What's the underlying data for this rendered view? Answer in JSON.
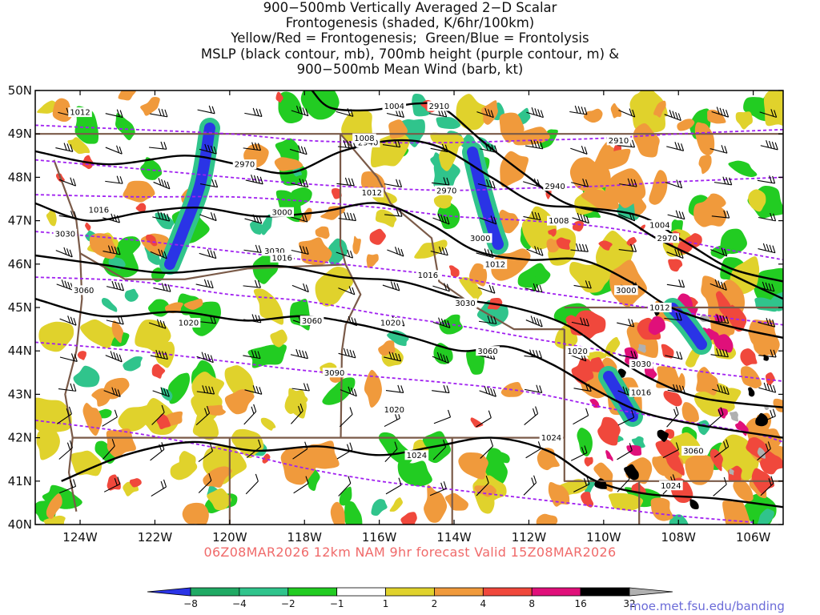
{
  "figure": {
    "title_lines": [
      "900−500mb Vertically Averaged 2−D Scalar",
      "Frontogenesis (shaded, K/6hr/100km)",
      "Yellow/Red = Frontogenesis;  Green/Blue = Frontolysis",
      "MSLP (black contour, mb), 700mb height (purple contour, m) &",
      "900−500mb Mean Wind (barb, kt)"
    ],
    "valid_label": "06Z08MAR2026 12km NAM 9hr forecast Valid 15Z08MAR2026",
    "source": "moe.met.fsu.edu/banding"
  },
  "map": {
    "lon_range": [
      -125.2,
      -105.2
    ],
    "lat_range": [
      40,
      50
    ],
    "lat_ticks": [
      {
        "value": 50,
        "label": "50N"
      },
      {
        "value": 49,
        "label": "49N"
      },
      {
        "value": 48,
        "label": "48N"
      },
      {
        "value": 47,
        "label": "47N"
      },
      {
        "value": 46,
        "label": "46N"
      },
      {
        "value": 45,
        "label": "45N"
      },
      {
        "value": 44,
        "label": "44N"
      },
      {
        "value": 43,
        "label": "43N"
      },
      {
        "value": 42,
        "label": "42N"
      },
      {
        "value": 41,
        "label": "41N"
      },
      {
        "value": 40,
        "label": "40N"
      }
    ],
    "lon_ticks": [
      {
        "value": -124,
        "label": "124W"
      },
      {
        "value": -122,
        "label": "122W"
      },
      {
        "value": -120,
        "label": "120W"
      },
      {
        "value": -118,
        "label": "118W"
      },
      {
        "value": -116,
        "label": "116W"
      },
      {
        "value": -114,
        "label": "114W"
      },
      {
        "value": -112,
        "label": "112W"
      },
      {
        "value": -110,
        "label": "110W"
      },
      {
        "value": -108,
        "label": "108W"
      },
      {
        "value": -106,
        "label": "106W"
      }
    ],
    "colors": {
      "blue": "#2a34e6",
      "teal": "#30c48c",
      "green": "#22cc22",
      "yellow": "#e0d22c",
      "orange": "#f09a3c",
      "red": "#f0483c",
      "magenta": "#e0107a",
      "black": "#000000",
      "gray": "#b0b0b0",
      "border": "#7a5a48",
      "height_contour": "#a020f0",
      "pressure_contour": "#000000"
    },
    "height_contours": [
      {
        "label": "2910",
        "points": [
          [
            -125.2,
            49.2
          ],
          [
            -122.5,
            49.1
          ],
          [
            -120,
            49.0
          ],
          [
            -118,
            48.85
          ],
          [
            -116,
            48.8
          ],
          [
            -114,
            48.8
          ],
          [
            -112,
            48.85
          ],
          [
            -110,
            48.9
          ],
          [
            -108,
            49.0
          ],
          [
            -105.2,
            49.1
          ]
        ],
        "labels": [
          [
            -114.4,
            49.64
          ],
          [
            -109.6,
            48.85
          ]
        ]
      },
      {
        "label": "2940",
        "points": [
          [
            -125.2,
            48.4
          ],
          [
            -122.5,
            48.2
          ],
          [
            -120,
            48.0
          ],
          [
            -118,
            47.85
          ],
          [
            -116,
            47.75
          ],
          [
            -114,
            47.7
          ],
          [
            -112,
            47.75
          ],
          [
            -110,
            47.8
          ],
          [
            -108,
            47.9
          ],
          [
            -105.2,
            48.0
          ]
        ],
        "labels": [
          [
            -116.3,
            48.8
          ],
          [
            -111.3,
            47.8
          ]
        ]
      },
      {
        "label": "2970",
        "points": [
          [
            -125.2,
            47.6
          ],
          [
            -122.5,
            47.55
          ],
          [
            -120,
            47.55
          ],
          [
            -118,
            47.45
          ],
          [
            -116,
            47.3
          ],
          [
            -114,
            47.1
          ],
          [
            -112,
            47.0
          ],
          [
            -110,
            46.85
          ],
          [
            -108,
            46.55
          ],
          [
            -106.5,
            46.3
          ],
          [
            -105.2,
            46.1
          ]
        ],
        "labels": [
          [
            -119.6,
            48.3
          ],
          [
            -114.2,
            47.7
          ],
          [
            -108.3,
            46.6
          ]
        ]
      },
      {
        "label": "3000",
        "points": [
          [
            -125.2,
            46.75
          ],
          [
            -122.5,
            46.55
          ],
          [
            -120,
            46.3
          ],
          [
            -118,
            46.1
          ],
          [
            -116,
            45.9
          ],
          [
            -114,
            45.7
          ],
          [
            -112,
            45.4
          ],
          [
            -110,
            45.15
          ],
          [
            -108,
            44.9
          ],
          [
            -105.2,
            44.6
          ]
        ],
        "labels": [
          [
            -118.6,
            47.2
          ],
          [
            -113.3,
            46.6
          ],
          [
            -109.4,
            45.4
          ]
        ]
      },
      {
        "label": "3030",
        "points": [
          [
            -125.2,
            45.7
          ],
          [
            -122.5,
            45.6
          ],
          [
            -120,
            45.3
          ],
          [
            -118,
            45.15
          ],
          [
            -116,
            44.85
          ],
          [
            -114,
            44.6
          ],
          [
            -112,
            44.3
          ],
          [
            -110,
            44.0
          ],
          [
            -108,
            43.6
          ],
          [
            -105.2,
            43.3
          ]
        ],
        "labels": [
          [
            -124.4,
            46.7
          ],
          [
            -118.8,
            46.3
          ],
          [
            -113.7,
            45.1
          ],
          [
            -109.0,
            43.7
          ]
        ]
      },
      {
        "label": "3060",
        "points": [
          [
            -125.2,
            44.2
          ],
          [
            -122.5,
            44.0
          ],
          [
            -120,
            43.75
          ],
          [
            -118,
            43.55
          ],
          [
            -116,
            43.4
          ],
          [
            -114,
            43.25
          ],
          [
            -112,
            43.05
          ],
          [
            -110,
            42.7
          ],
          [
            -108,
            42.4
          ],
          [
            -106,
            42.1
          ],
          [
            -105.2,
            41.9
          ]
        ],
        "labels": [
          [
            -123.9,
            45.4
          ],
          [
            -117.8,
            44.7
          ],
          [
            -113.1,
            44.0
          ],
          [
            -107.6,
            41.7
          ]
        ]
      },
      {
        "label": "3090",
        "points": [
          [
            -125.2,
            42.4
          ],
          [
            -122.5,
            42.1
          ],
          [
            -120,
            41.7
          ],
          [
            -118,
            41.3
          ],
          [
            -116,
            41.0
          ],
          [
            -114,
            40.8
          ],
          [
            -112,
            40.6
          ],
          [
            -110,
            40.4
          ],
          [
            -108,
            40.2
          ],
          [
            -106,
            40.05
          ]
        ],
        "labels": [
          [
            -117.2,
            43.5
          ]
        ]
      }
    ],
    "pressure_contours": [
      {
        "label": "1004",
        "points": [
          [
            -117.8,
            50.0
          ],
          [
            -117.3,
            49.6
          ],
          [
            -116.2,
            49.55
          ],
          [
            -115.0,
            49.7
          ],
          [
            -114.3,
            49.6
          ],
          [
            -113.2,
            48.8
          ],
          [
            -112.0,
            48.0
          ],
          [
            -111.0,
            47.4
          ],
          [
            -109.6,
            47.1
          ],
          [
            -108.6,
            46.6
          ],
          [
            -107.4,
            46.1
          ],
          [
            -106.2,
            45.6
          ],
          [
            -105.2,
            45.2
          ]
        ],
        "labels": [
          [
            -115.6,
            49.64
          ],
          [
            -108.5,
            46.9
          ]
        ]
      },
      {
        "label": "1008",
        "points": [
          [
            -125.2,
            48.6
          ],
          [
            -123.3,
            48.3
          ],
          [
            -121.2,
            48.5
          ],
          [
            -119.8,
            48.3
          ],
          [
            -118.4,
            48.1
          ],
          [
            -117.0,
            48.6
          ],
          [
            -115.6,
            48.85
          ],
          [
            -114.4,
            48.7
          ],
          [
            -113.0,
            48.0
          ],
          [
            -111.8,
            47.4
          ],
          [
            -110.5,
            47.3
          ],
          [
            -109.0,
            47.1
          ],
          [
            -107.8,
            46.5
          ],
          [
            -106.6,
            45.9
          ],
          [
            -105.2,
            45.6
          ]
        ],
        "labels": [
          [
            -116.4,
            48.9
          ],
          [
            -111.2,
            47.0
          ]
        ]
      },
      {
        "label": "1012",
        "points": [
          [
            -125.2,
            47.4
          ],
          [
            -123.8,
            47.0
          ],
          [
            -122.3,
            47.2
          ],
          [
            -120.8,
            47.3
          ],
          [
            -119.2,
            47.1
          ],
          [
            -117.6,
            47.2
          ],
          [
            -116.0,
            47.4
          ],
          [
            -114.6,
            46.9
          ],
          [
            -113.4,
            46.3
          ],
          [
            -112.0,
            46.1
          ],
          [
            -110.6,
            46.1
          ],
          [
            -109.3,
            45.6
          ],
          [
            -108.2,
            45.0
          ],
          [
            -106.8,
            44.6
          ],
          [
            -105.2,
            44.3
          ]
        ],
        "labels": [
          [
            -116.2,
            47.65
          ],
          [
            -112.9,
            46.0
          ],
          [
            -108.5,
            45.0
          ],
          [
            -124.0,
            49.5
          ]
        ]
      },
      {
        "label": "1016",
        "points": [
          [
            -125.2,
            46.2
          ],
          [
            -123.5,
            46.0
          ],
          [
            -121.8,
            45.8
          ],
          [
            -120.2,
            45.9
          ],
          [
            -118.6,
            45.95
          ],
          [
            -117.0,
            45.7
          ],
          [
            -115.4,
            45.6
          ],
          [
            -113.8,
            45.2
          ],
          [
            -112.4,
            45.0
          ],
          [
            -111.0,
            44.6
          ],
          [
            -109.8,
            43.9
          ],
          [
            -108.6,
            43.3
          ],
          [
            -107.3,
            42.9
          ],
          [
            -105.2,
            42.7
          ]
        ],
        "labels": [
          [
            -118.6,
            46.15
          ],
          [
            -114.7,
            45.75
          ],
          [
            -109.0,
            43.05
          ],
          [
            -123.5,
            47.25
          ]
        ]
      },
      {
        "label": "1020",
        "points": [
          [
            -125.2,
            45.2
          ],
          [
            -123.4,
            44.8
          ],
          [
            -121.4,
            44.9
          ],
          [
            -119.6,
            44.7
          ],
          [
            -118.0,
            44.8
          ],
          [
            -116.5,
            44.6
          ],
          [
            -115.1,
            44.3
          ],
          [
            -113.8,
            44.0
          ],
          [
            -112.6,
            44.1
          ],
          [
            -111.4,
            43.7
          ],
          [
            -110.2,
            43.1
          ],
          [
            -109.0,
            42.6
          ],
          [
            -107.5,
            42.3
          ],
          [
            -105.2,
            42.0
          ]
        ],
        "labels": [
          [
            -121.1,
            44.65
          ],
          [
            -115.7,
            44.65
          ],
          [
            -110.7,
            44.0
          ],
          [
            -115.6,
            42.65
          ]
        ]
      },
      {
        "label": "1024",
        "points": [
          [
            -124.5,
            41.0
          ],
          [
            -122.8,
            41.6
          ],
          [
            -121.0,
            41.9
          ],
          [
            -119.3,
            41.7
          ],
          [
            -117.6,
            41.8
          ],
          [
            -116.0,
            41.6
          ],
          [
            -114.5,
            41.8
          ],
          [
            -113.0,
            42.0
          ],
          [
            -111.5,
            41.7
          ],
          [
            -110.2,
            41.0
          ],
          [
            -108.8,
            40.7
          ],
          [
            -107.0,
            40.6
          ],
          [
            -105.2,
            40.4
          ]
        ],
        "labels": [
          [
            -115.0,
            41.6
          ],
          [
            -111.4,
            42.0
          ],
          [
            -108.2,
            40.9
          ]
        ]
      }
    ],
    "colorbar": {
      "labels": [
        "−8",
        "−4",
        "−2",
        "−1",
        "1",
        "2",
        "4",
        "8",
        "16",
        "32"
      ],
      "colors": [
        "#2a34e6",
        "#20aa64",
        "#30c48c",
        "#22cc22",
        "#ffffff",
        "#e0d22c",
        "#f09a3c",
        "#f0483c",
        "#e0107a",
        "#000000",
        "#b0b0b0"
      ]
    }
  }
}
